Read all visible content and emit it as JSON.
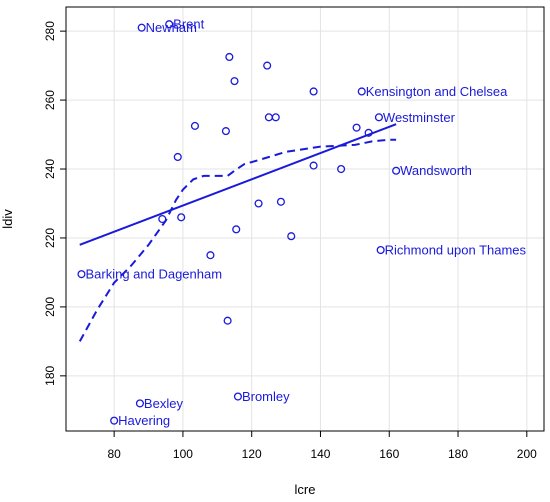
{
  "chart_data": {
    "type": "scatter",
    "xlabel": "lcre",
    "ylabel": "ldiv",
    "xlim": [
      66,
      205
    ],
    "ylim": [
      164,
      287
    ],
    "x_ticks": [
      80,
      100,
      120,
      140,
      160,
      180,
      200
    ],
    "y_ticks": [
      180,
      200,
      220,
      240,
      260,
      280
    ],
    "grid": true,
    "color": "#1a1adb",
    "points": [
      {
        "x": 96,
        "y": 282,
        "label": "Brent"
      },
      {
        "x": 88,
        "y": 281,
        "label": "Newham"
      },
      {
        "x": 113.5,
        "y": 272.5,
        "label": ""
      },
      {
        "x": 124.5,
        "y": 270,
        "label": ""
      },
      {
        "x": 115,
        "y": 265.5,
        "label": ""
      },
      {
        "x": 138,
        "y": 262.5,
        "label": ""
      },
      {
        "x": 152,
        "y": 262.5,
        "label": "Kensington and Chelsea"
      },
      {
        "x": 103.5,
        "y": 252.5,
        "label": ""
      },
      {
        "x": 112.5,
        "y": 251,
        "label": ""
      },
      {
        "x": 125,
        "y": 255,
        "label": ""
      },
      {
        "x": 127,
        "y": 255,
        "label": ""
      },
      {
        "x": 150.5,
        "y": 252,
        "label": ""
      },
      {
        "x": 154,
        "y": 250.5,
        "label": ""
      },
      {
        "x": 157,
        "y": 255,
        "label": "Westminster"
      },
      {
        "x": 98.5,
        "y": 243.5,
        "label": ""
      },
      {
        "x": 138,
        "y": 241,
        "label": ""
      },
      {
        "x": 146,
        "y": 240,
        "label": ""
      },
      {
        "x": 162,
        "y": 239.5,
        "label": "Wandsworth"
      },
      {
        "x": 94,
        "y": 225.5,
        "label": ""
      },
      {
        "x": 99.5,
        "y": 226,
        "label": ""
      },
      {
        "x": 115.5,
        "y": 222.5,
        "label": ""
      },
      {
        "x": 122,
        "y": 230,
        "label": ""
      },
      {
        "x": 128.5,
        "y": 230.5,
        "label": ""
      },
      {
        "x": 131.5,
        "y": 220.5,
        "label": ""
      },
      {
        "x": 108,
        "y": 215,
        "label": ""
      },
      {
        "x": 157.5,
        "y": 216.5,
        "label": "Richmond upon Thames"
      },
      {
        "x": 70.5,
        "y": 209.5,
        "label": "Barking and Dagenham"
      },
      {
        "x": 113,
        "y": 196,
        "label": ""
      },
      {
        "x": 87.5,
        "y": 172,
        "label": "Bexley"
      },
      {
        "x": 116,
        "y": 174,
        "label": "Bromley"
      },
      {
        "x": 80,
        "y": 167,
        "label": "Havering"
      }
    ],
    "regression_line": {
      "style": "solid",
      "x": [
        70,
        162
      ],
      "y": [
        218,
        253
      ]
    },
    "smooth_line": {
      "style": "dashed",
      "x": [
        70,
        75,
        80,
        85,
        90,
        95,
        98,
        100,
        103,
        106,
        110,
        113,
        115,
        118,
        120,
        125,
        130,
        140,
        150,
        155,
        160,
        162
      ],
      "y": [
        190,
        199,
        207,
        212,
        218,
        225,
        231,
        234,
        237,
        238,
        238,
        238,
        239.5,
        241.5,
        242,
        243.5,
        245,
        246.5,
        247,
        248,
        248.5,
        248.5
      ]
    }
  }
}
